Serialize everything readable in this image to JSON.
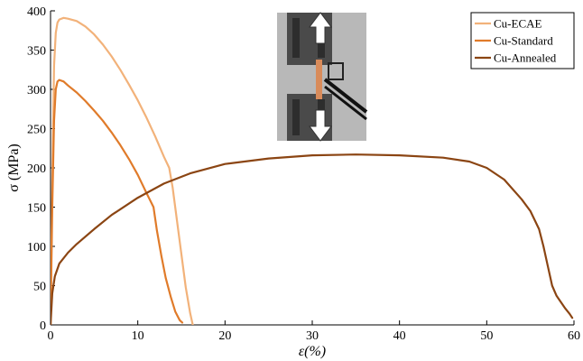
{
  "chart_data": {
    "type": "line",
    "title": "",
    "xlabel": "ε(%)",
    "ylabel": "σ (MPa)",
    "xlim": [
      0,
      60
    ],
    "ylim": [
      0,
      400
    ],
    "xticks": [
      0,
      10,
      20,
      30,
      40,
      50,
      60
    ],
    "yticks": [
      0,
      50,
      100,
      150,
      200,
      250,
      300,
      350,
      400
    ],
    "grid": false,
    "legend_position": "top-right",
    "inset_image": "tensile test specimen in grips with up and down arrows",
    "series": [
      {
        "name": "Cu-ECAE",
        "color": "#f2b27a",
        "x": [
          0,
          0.2,
          0.4,
          0.6,
          0.8,
          1.0,
          1.5,
          2.0,
          3,
          4,
          5,
          6,
          7,
          8,
          9,
          10,
          11,
          12,
          13,
          13.6,
          14.0,
          14.5,
          15.0,
          15.5,
          16.0,
          16.3
        ],
        "y": [
          0,
          180,
          330,
          372,
          385,
          389,
          391,
          390,
          387,
          380,
          370,
          357,
          342,
          325,
          306,
          286,
          264,
          240,
          214,
          200,
          175,
          132,
          90,
          48,
          15,
          0
        ]
      },
      {
        "name": "Cu-Standard",
        "color": "#e07b2a",
        "x": [
          0,
          0.2,
          0.4,
          0.6,
          0.8,
          1.0,
          1.5,
          2,
          3,
          4,
          5,
          6,
          7,
          8,
          9,
          10,
          11,
          11.8,
          12.2,
          12.7,
          13.2,
          13.8,
          14.3,
          14.8,
          15.1
        ],
        "y": [
          0,
          150,
          260,
          300,
          310,
          312,
          310,
          305,
          296,
          285,
          273,
          260,
          245,
          229,
          211,
          191,
          168,
          150,
          120,
          88,
          60,
          35,
          17,
          6,
          3
        ]
      },
      {
        "name": "Cu-Annealed",
        "color": "#8b4513",
        "x": [
          0,
          0.2,
          0.5,
          1,
          2,
          3,
          5,
          7,
          10,
          13,
          16,
          20,
          25,
          30,
          35,
          40,
          45,
          48,
          50,
          52,
          54,
          55,
          56,
          56.5,
          57,
          57.5,
          58,
          58.5,
          59,
          59.5,
          59.8
        ],
        "y": [
          0,
          40,
          62,
          78,
          92,
          103,
          122,
          140,
          162,
          180,
          193,
          205,
          212,
          216,
          217,
          216,
          213,
          208,
          200,
          185,
          160,
          145,
          122,
          100,
          75,
          50,
          37,
          29,
          21,
          14,
          9
        ]
      }
    ]
  }
}
